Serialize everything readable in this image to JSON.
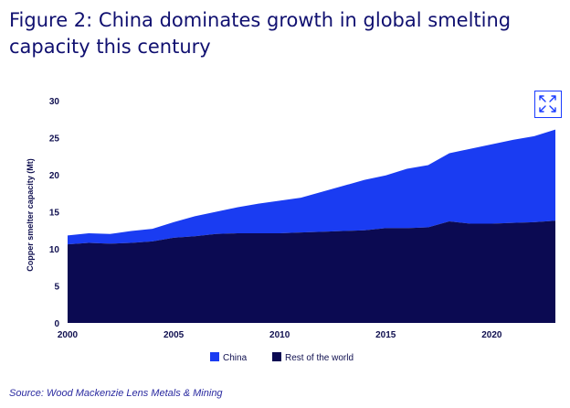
{
  "title": "Figure 2: China dominates growth in global smelting capacity this century",
  "source": "Source: Wood Mackenzie Lens Metals & Mining",
  "expand_icon": "expand-arrows-icon",
  "colors": {
    "china": "#1a3cf2",
    "rest": "#0b0a52",
    "text": "#101070",
    "accent": "#1a3cff"
  },
  "chart_data": {
    "type": "area",
    "stacked": true,
    "title": "Figure 2: China dominates growth in global smelting capacity this century",
    "xlabel": "",
    "ylabel": "Copper smelter capacity (Mt)",
    "xlim": [
      2000,
      2023
    ],
    "ylim": [
      0,
      30
    ],
    "xticks": [
      2000,
      2005,
      2010,
      2015,
      2020
    ],
    "yticks": [
      0,
      5,
      10,
      15,
      20,
      25,
      30
    ],
    "legend_position": "bottom",
    "x": [
      2000,
      2001,
      2002,
      2003,
      2004,
      2005,
      2006,
      2007,
      2008,
      2009,
      2010,
      2011,
      2012,
      2013,
      2014,
      2015,
      2016,
      2017,
      2018,
      2019,
      2020,
      2021,
      2022,
      2023
    ],
    "series": [
      {
        "name": "Rest of the world",
        "values": [
          10.6,
          10.8,
          10.7,
          10.8,
          11.0,
          11.5,
          11.7,
          12.0,
          12.1,
          12.1,
          12.1,
          12.2,
          12.3,
          12.4,
          12.5,
          12.8,
          12.8,
          12.9,
          13.7,
          13.4,
          13.4,
          13.5,
          13.6,
          13.8
        ]
      },
      {
        "name": "China",
        "values": [
          1.2,
          1.3,
          1.3,
          1.6,
          1.7,
          2.1,
          2.7,
          3.0,
          3.5,
          4.0,
          4.4,
          4.7,
          5.4,
          6.1,
          6.8,
          7.1,
          8.0,
          8.4,
          9.2,
          10.1,
          10.7,
          11.2,
          11.6,
          12.3
        ]
      }
    ],
    "legend": [
      "China",
      "Rest of the world"
    ]
  }
}
